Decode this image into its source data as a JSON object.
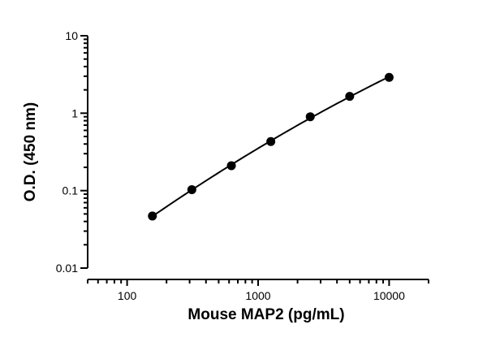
{
  "chart_data": {
    "type": "scatter",
    "title": "",
    "xlabel": "Mouse MAP2 (pg/mL)",
    "ylabel": "O.D. (450 nm)",
    "xscale": "log",
    "yscale": "log",
    "xlim": [
      50,
      20000
    ],
    "ylim": [
      0.01,
      10
    ],
    "x_ticks": [
      {
        "value": 100,
        "label": "100"
      },
      {
        "value": 1000,
        "label": "1000"
      },
      {
        "value": 10000,
        "label": "10000"
      }
    ],
    "y_ticks": [
      {
        "value": 0.01,
        "label": "0.01"
      },
      {
        "value": 0.1,
        "label": "0.1"
      },
      {
        "value": 1,
        "label": "1"
      },
      {
        "value": 10,
        "label": "10"
      }
    ],
    "grid": false,
    "legend": "none",
    "fit_line": true,
    "series": [
      {
        "x": [
          156,
          312,
          625,
          1250,
          2500,
          5000,
          10000
        ],
        "y": [
          0.047,
          0.103,
          0.21,
          0.43,
          0.9,
          1.65,
          2.9
        ]
      }
    ],
    "colors": {
      "points": "#000000",
      "line": "#000000"
    }
  }
}
